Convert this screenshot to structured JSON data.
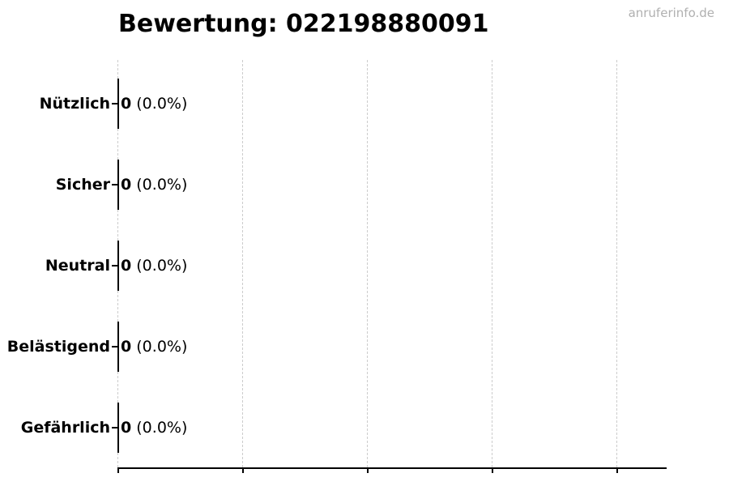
{
  "watermark": "anruferinfo.de",
  "chart_data": {
    "type": "bar",
    "orientation": "horizontal",
    "title": "Bewertung: 022198880091",
    "categories": [
      "Nützlich",
      "Sicher",
      "Neutral",
      "Belästigend",
      "Gefährlich"
    ],
    "values": [
      0,
      0,
      0,
      0,
      0
    ],
    "percentages": [
      0.0,
      0.0,
      0.0,
      0.0,
      0.0
    ],
    "bar_annotations": [
      "0 (0.0%)",
      "0 (0.0%)",
      "0 (0.0%)",
      "0 (0.0%)",
      "0 (0.0%)"
    ],
    "x_tick_labels": [],
    "num_x_gridlines": 5,
    "grid": "vertical-dashed",
    "legend_position": "none",
    "title_align": "left",
    "colors": {
      "bar": "#000000",
      "grid": "#cccccc",
      "axis": "#000000",
      "title": "#000000",
      "text": "#000000",
      "watermark": "#b0b0b0",
      "background": "#ffffff"
    }
  }
}
